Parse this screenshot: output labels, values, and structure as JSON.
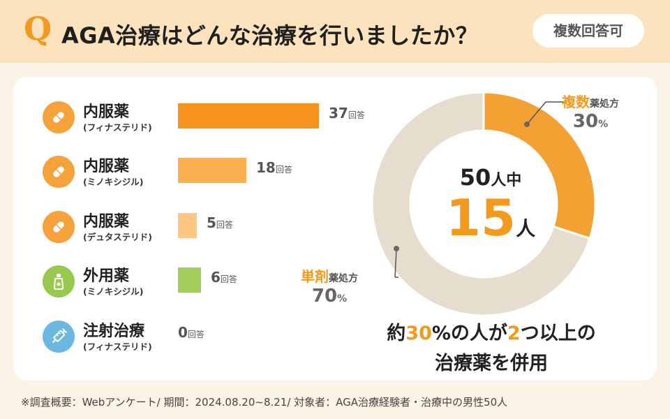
{
  "header": {
    "q_mark": "Q",
    "question": "AGA治療はどんな治療を行いましたか？",
    "badge": "複数回答可"
  },
  "chart_data": [
    {
      "type": "bar",
      "orientation": "horizontal",
      "unit": "回答",
      "categories": [
        {
          "name": "内服薬",
          "sub": "(フィナステリド)",
          "icon": "pill-icon"
        },
        {
          "name": "内服薬",
          "sub": "(ミノキシジル)",
          "icon": "pill-icon"
        },
        {
          "name": "内服薬",
          "sub": "(デュタステリド)",
          "icon": "pill-icon"
        },
        {
          "name": "外用薬",
          "sub": "(ミノキシジル)",
          "icon": "lotion-bottle-icon"
        },
        {
          "name": "注射治療",
          "sub": "(フィナステリド)",
          "icon": "syringe-icon"
        }
      ],
      "values": [
        37,
        18,
        5,
        6,
        0
      ],
      "bar_colors": [
        "#f7941d",
        "#fbb050",
        "#fdc682",
        "#a5cf5b",
        "#9ccbe6"
      ],
      "icon_colors": [
        "#f6a23a",
        "#f6a23a",
        "#f6a23a",
        "#98c94f",
        "#6cb8e3"
      ],
      "xlim": [
        0,
        37
      ]
    },
    {
      "type": "pie",
      "donut": true,
      "total": 50,
      "slices": [
        {
          "label_strong": "複数",
          "label_rest": "薬処方",
          "value": 15,
          "percent": 30,
          "color": "#f4a134"
        },
        {
          "label_strong": "単剤",
          "label_rest": "薬処方",
          "value": 35,
          "percent": 70,
          "color": "#e6ddcf"
        }
      ],
      "center": {
        "total_num": "50",
        "total_unit": "人中",
        "highlight_num": "15",
        "highlight_unit": "人"
      }
    }
  ],
  "conclusion": {
    "pre": "約",
    "hl1": "30",
    "mid1": "%の人が",
    "hl2": "2",
    "mid2": "つ以上の",
    "line2": "治療薬を併用"
  },
  "footnote": "※調査概要：Webアンケート/ 期間：2024.08.20~8.21/ 対象者：AGA治療経験者・治療中の男性50人"
}
